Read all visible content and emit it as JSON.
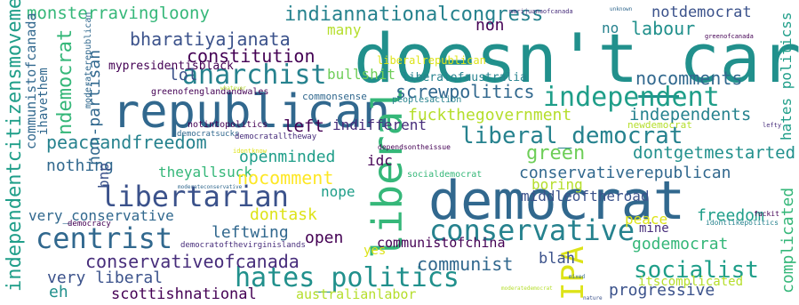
{
  "words": [
    {
      "t": "doesn't_care",
      "c": "#21908c"
    },
    {
      "t": "democrat",
      "c": "#31688e"
    },
    {
      "t": "republican",
      "c": "#31688e"
    },
    {
      "t": "liberal",
      "c": "#35b779"
    },
    {
      "t": "independent",
      "c": "#1f9e89"
    },
    {
      "t": "conservative",
      "c": "#26828e"
    },
    {
      "t": "libertarian",
      "c": "#3b528b"
    },
    {
      "t": "centrist",
      "c": "#31688e"
    },
    {
      "t": "hates_politics",
      "c": "#21908c"
    },
    {
      "t": "anarchist",
      "c": "#26828e"
    },
    {
      "t": "liberal_democrat",
      "c": "#26828e"
    },
    {
      "t": "IPA",
      "c": "#dde318"
    },
    {
      "t": "socialist",
      "c": "#1f9e89"
    },
    {
      "t": "indiannationalcongress",
      "c": "#26828e"
    },
    {
      "t": "bharatiyajanata",
      "c": "#3b528b"
    },
    {
      "t": "constitution",
      "c": "#440154"
    },
    {
      "t": "peaceandfreedom",
      "c": "#26828e"
    },
    {
      "t": "conservativeofcanada",
      "c": "#472d7b"
    },
    {
      "t": "screwpolitics",
      "c": "#31688e"
    },
    {
      "t": "nocomments",
      "c": "#31688e"
    },
    {
      "t": "independents",
      "c": "#26828e"
    },
    {
      "t": "fuckthegovernment",
      "c": "#b5de2b"
    },
    {
      "t": "green",
      "c": "#6ece58"
    },
    {
      "t": "dontgetmestarted",
      "c": "#21908c"
    },
    {
      "t": "conservativerepublican",
      "c": "#31688e"
    },
    {
      "t": "monsterravingloony",
      "c": "#35b779"
    },
    {
      "t": "labour",
      "c": "#21908c"
    },
    {
      "t": "notdemocrat",
      "c": "#3b528b"
    },
    {
      "t": "non",
      "c": "#440154"
    },
    {
      "t": "no",
      "c": "#26828e"
    },
    {
      "t": "many",
      "c": "#b5de2b"
    },
    {
      "t": "lol",
      "c": "#3b528b"
    },
    {
      "t": "bullshit",
      "c": "#6ece58"
    },
    {
      "t": "left",
      "c": "#440154"
    },
    {
      "t": "indifferent",
      "c": "#472d7b"
    },
    {
      "t": "nothing",
      "c": "#31688e"
    },
    {
      "t": "openminded",
      "c": "#1f9e89"
    },
    {
      "t": "theyallsuck",
      "c": "#35b779"
    },
    {
      "t": "nocomment",
      "c": "#fde725"
    },
    {
      "t": "idc",
      "c": "#440154"
    },
    {
      "t": "boring",
      "c": "#b5de2b"
    },
    {
      "t": "middleoftheroad",
      "c": "#3b528b"
    },
    {
      "t": "nope",
      "c": "#1f9e89"
    },
    {
      "t": "dontask",
      "c": "#dde318"
    },
    {
      "t": "freedom",
      "c": "#1f9e89"
    },
    {
      "t": "leftwing",
      "c": "#31688e"
    },
    {
      "t": "open",
      "c": "#440154"
    },
    {
      "t": "peace",
      "c": "#dde318"
    },
    {
      "t": "mine",
      "c": "#472d7b"
    },
    {
      "t": "godemocrat",
      "c": "#35b779"
    },
    {
      "t": "communistofchina",
      "c": "#440154"
    },
    {
      "t": "blah",
      "c": "#3b528b"
    },
    {
      "t": "communist",
      "c": "#31688e"
    },
    {
      "t": "yes",
      "c": "#dde318"
    },
    {
      "t": "itscomplicated",
      "c": "#b5de2b"
    },
    {
      "t": "very liberal",
      "c": "#3b528b"
    },
    {
      "t": "eh",
      "c": "#21908c"
    },
    {
      "t": "scottishnational",
      "c": "#440154"
    },
    {
      "t": "australianlabor",
      "c": "#b5de2b"
    },
    {
      "t": "progressive",
      "c": "#3b528b"
    },
    {
      "t": "very_conservative",
      "c": "#31688e"
    },
    {
      "t": "independentcitizensmovement",
      "c": "#1f9e89"
    },
    {
      "t": "communistofcanada",
      "c": "#31688e"
    },
    {
      "t": "ihavethem",
      "c": "#31688e"
    },
    {
      "t": "ndemocrat",
      "c": "#35b779"
    },
    {
      "t": "non-partisan",
      "c": "#31688e"
    },
    {
      "t": "moderaterepublican",
      "c": "#31688e"
    },
    {
      "t": "bnp",
      "c": "#3b528b"
    },
    {
      "t": "complicated",
      "c": "#35b779"
    },
    {
      "t": "hates politicss",
      "c": "#1f9e89"
    },
    {
      "t": "mypresidentisblack",
      "c": "#440154"
    },
    {
      "t": "liberalrepublican",
      "c": "#dde318"
    },
    {
      "t": "liberalofaustralia",
      "c": "#26828e"
    },
    {
      "t": "greenofenglandandwales",
      "c": "#440154"
    },
    {
      "t": "commonsense",
      "c": "#31688e"
    },
    {
      "t": "peoplesaction",
      "c": "#26828e"
    },
    {
      "t": "notintopolitics",
      "c": "#440154"
    },
    {
      "t": "democratsucks",
      "c": "#31688e"
    },
    {
      "t": "democratalltheway",
      "c": "#472d7b"
    },
    {
      "t": "newdemocrat",
      "c": "#b5de2b"
    },
    {
      "t": "idontknow",
      "c": "#dde318"
    },
    {
      "t": "dependsontheissue",
      "c": "#440154"
    },
    {
      "t": "socialdemocrat",
      "c": "#35b779"
    },
    {
      "t": "democracy",
      "c": "#440154"
    },
    {
      "t": "democratofthevirginislands",
      "c": "#472d7b"
    },
    {
      "t": "moderateconservative",
      "c": "#31688e"
    },
    {
      "t": "marijuanaofcanada",
      "c": "#472d7b"
    },
    {
      "t": "greenofcanada",
      "c": "#440154"
    },
    {
      "t": "idontlikepolitics",
      "c": "#26828e"
    },
    {
      "t": "fuckit",
      "c": "#440154"
    },
    {
      "t": "lefty",
      "c": "#472d7b"
    },
    {
      "t": "moderatedemocrat",
      "c": "#b5de2b"
    },
    {
      "t": "mixed",
      "c": "#31688e"
    },
    {
      "t": "nature",
      "c": "#3b528b"
    },
    {
      "t": "unknown",
      "c": "#31688e"
    },
    {
      "t": "whatever",
      "c": "#b5de2b"
    }
  ]
}
